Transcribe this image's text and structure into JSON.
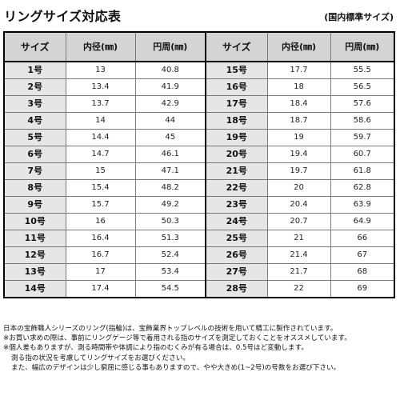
{
  "title": "リングサイズ対応表",
  "subtitle": "(国内標準サイズ)",
  "table": {
    "headers": {
      "size": "サイズ",
      "diameter": "内径(㎜)",
      "circumference": "円周(㎜)"
    },
    "rows": [
      {
        "left": {
          "size": "1号",
          "diameter": "13",
          "circumference": "40.8"
        },
        "right": {
          "size": "15号",
          "diameter": "17.7",
          "circumference": "55.5"
        }
      },
      {
        "left": {
          "size": "2号",
          "diameter": "13.4",
          "circumference": "41.9"
        },
        "right": {
          "size": "16号",
          "diameter": "18",
          "circumference": "56.5"
        }
      },
      {
        "left": {
          "size": "3号",
          "diameter": "13.7",
          "circumference": "42.9"
        },
        "right": {
          "size": "17号",
          "diameter": "18.4",
          "circumference": "57.6"
        }
      },
      {
        "left": {
          "size": "4号",
          "diameter": "14",
          "circumference": "44"
        },
        "right": {
          "size": "18号",
          "diameter": "18.7",
          "circumference": "58.6"
        }
      },
      {
        "left": {
          "size": "5号",
          "diameter": "14.4",
          "circumference": "45"
        },
        "right": {
          "size": "19号",
          "diameter": "19",
          "circumference": "59.7"
        }
      },
      {
        "left": {
          "size": "6号",
          "diameter": "14.7",
          "circumference": "46.1"
        },
        "right": {
          "size": "20号",
          "diameter": "19.4",
          "circumference": "60.7"
        }
      },
      {
        "left": {
          "size": "7号",
          "diameter": "15",
          "circumference": "47.1"
        },
        "right": {
          "size": "21号",
          "diameter": "19.7",
          "circumference": "61.8"
        }
      },
      {
        "left": {
          "size": "8号",
          "diameter": "15.4",
          "circumference": "48.2"
        },
        "right": {
          "size": "22号",
          "diameter": "20",
          "circumference": "62.8"
        }
      },
      {
        "left": {
          "size": "9号",
          "diameter": "15.7",
          "circumference": "49.2"
        },
        "right": {
          "size": "23号",
          "diameter": "20.4",
          "circumference": "63.9"
        }
      },
      {
        "left": {
          "size": "10号",
          "diameter": "16",
          "circumference": "50.3"
        },
        "right": {
          "size": "24号",
          "diameter": "20.7",
          "circumference": "64.9"
        }
      },
      {
        "left": {
          "size": "11号",
          "diameter": "16.4",
          "circumference": "51.3"
        },
        "right": {
          "size": "25号",
          "diameter": "21",
          "circumference": "66"
        }
      },
      {
        "left": {
          "size": "12号",
          "diameter": "16.7",
          "circumference": "52.4"
        },
        "right": {
          "size": "26号",
          "diameter": "21.4",
          "circumference": "67"
        }
      },
      {
        "left": {
          "size": "13号",
          "diameter": "17",
          "circumference": "53.4"
        },
        "right": {
          "size": "27号",
          "diameter": "21.7",
          "circumference": "68"
        }
      },
      {
        "left": {
          "size": "14号",
          "diameter": "17.4",
          "circumference": "54.5"
        },
        "right": {
          "size": "28号",
          "diameter": "22",
          "circumference": "69"
        }
      }
    ]
  },
  "notes": [
    "日本の宝飾職人シリーズのリング(指輪)は、宝飾業界トップレベルの技術を用いて精工に製作されています。",
    "※お買い求めの際は、事前にリングゲージ等で着用される指のサイズを測定しておくことをオススメしています。",
    "※個人差もありますが、測る時間帯や体調により指のむくみが有る場合は、0.5号ほど変動します。",
    "測る指の状況を考慮してリングサイズをお選びください。",
    "また、幅広のデザインは少し窮屈に感じる事もありますので、やや大きめ(1~2号)の号数をお選び下さい。"
  ]
}
